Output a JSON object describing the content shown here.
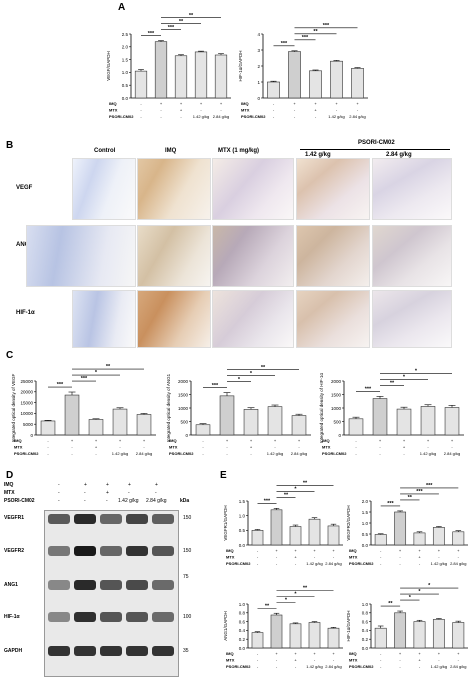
{
  "panel_labels": {
    "a": "A",
    "b": "B",
    "c": "C",
    "d": "D",
    "e": "E"
  },
  "treatment_rows": [
    "IMQ",
    "MTX",
    "PSORI-CM02"
  ],
  "treatment_signs": [
    [
      "-",
      "+",
      "+",
      "+",
      "+"
    ],
    [
      "-",
      "-",
      "+",
      "-",
      "-"
    ],
    [
      "-",
      "-",
      "-",
      "1.42 g/kg",
      "2.84 g/kg"
    ]
  ],
  "sig_labels": {
    "p001": "***",
    "p01": "**",
    "p05": "*"
  },
  "histology": {
    "columns": [
      "Control",
      "IMQ",
      "MTX (1 mg/kg)",
      "1.42 g/kg",
      "2.84 g/kg"
    ],
    "group_header": "PSORI-CM02",
    "rows": [
      "VEGF",
      "ANG1",
      "HIF-1α"
    ]
  },
  "western": {
    "kda_label": "kDa",
    "header_rows": {
      "IMQ": [
        "-",
        "+",
        "+",
        "+",
        "+"
      ],
      "MTX": [
        "-",
        "-",
        "+",
        "-",
        "-"
      ],
      "PSORI-CM02": [
        "-",
        "-",
        "-",
        "1.42 g/kg",
        "2.84 g/kg"
      ]
    },
    "proteins": [
      {
        "name": "VEGFR1",
        "kda": "150"
      },
      {
        "name": "VEGFR2",
        "kda": "150"
      },
      {
        "name": "ANG1",
        "kda": "75"
      },
      {
        "name": "HIF-1α",
        "kda": "100"
      },
      {
        "name": "GAPDH",
        "kda": "35"
      }
    ]
  },
  "chart_data": [
    {
      "panel": "A",
      "type": "bar",
      "ylabel": "VEGF/GAPDH",
      "ylim": [
        0,
        2.5
      ],
      "yticks": [
        "0.0",
        "0.5",
        "1.0",
        "1.5",
        "2.0",
        "2.5"
      ],
      "values": [
        1.05,
        2.2,
        1.65,
        1.8,
        1.68
      ],
      "errors": [
        0.06,
        0.04,
        0.04,
        0.03,
        0.05
      ],
      "brackets": [
        {
          "from": 0,
          "to": 1,
          "sig": "***"
        },
        {
          "from": 1,
          "to": 2,
          "sig": "***"
        },
        {
          "from": 1,
          "to": 3,
          "sig": "**"
        },
        {
          "from": 1,
          "to": 4,
          "sig": "**"
        }
      ]
    },
    {
      "panel": "A",
      "type": "bar",
      "ylabel": "HIF-1α/GAPDH",
      "ylim": [
        0,
        4
      ],
      "yticks": [
        "0",
        "1",
        "2",
        "3",
        "4"
      ],
      "values": [
        1.0,
        2.9,
        1.7,
        2.3,
        1.85
      ],
      "errors": [
        0.05,
        0.05,
        0.05,
        0.05,
        0.05
      ],
      "brackets": [
        {
          "from": 0,
          "to": 1,
          "sig": "***"
        },
        {
          "from": 1,
          "to": 2,
          "sig": "***"
        },
        {
          "from": 1,
          "to": 3,
          "sig": "**"
        },
        {
          "from": 1,
          "to": 4,
          "sig": "***"
        }
      ]
    },
    {
      "panel": "C",
      "type": "bar",
      "ylabel": "Integrated optical density of VEGF",
      "ylim": [
        0,
        25000
      ],
      "yticks": [
        "0",
        "5000",
        "10000",
        "15000",
        "20000",
        "25000"
      ],
      "values": [
        6500,
        18500,
        7200,
        12000,
        9500
      ],
      "errors": [
        300,
        1400,
        300,
        600,
        500
      ],
      "brackets": [
        {
          "from": 0,
          "to": 1,
          "sig": "***"
        },
        {
          "from": 1,
          "to": 2,
          "sig": "***"
        },
        {
          "from": 1,
          "to": 3,
          "sig": "*"
        },
        {
          "from": 1,
          "to": 4,
          "sig": "**"
        }
      ]
    },
    {
      "panel": "C",
      "type": "bar",
      "ylabel": "Integrated optical density of ANG1",
      "ylim": [
        0,
        2000
      ],
      "yticks": [
        "0",
        "500",
        "1000",
        "1500",
        "2000"
      ],
      "values": [
        380,
        1450,
        950,
        1050,
        720
      ],
      "errors": [
        40,
        120,
        60,
        60,
        50
      ],
      "brackets": [
        {
          "from": 0,
          "to": 1,
          "sig": "***"
        },
        {
          "from": 1,
          "to": 2,
          "sig": "*"
        },
        {
          "from": 1,
          "to": 3,
          "sig": "*"
        },
        {
          "from": 1,
          "to": 4,
          "sig": "**"
        }
      ]
    },
    {
      "panel": "C",
      "type": "bar",
      "ylabel": "Integrated optical density of HIF-1α",
      "ylim": [
        0,
        2000
      ],
      "yticks": [
        "0",
        "500",
        "1000",
        "1500",
        "2000"
      ],
      "values": [
        600,
        1350,
        960,
        1060,
        1020
      ],
      "errors": [
        60,
        80,
        70,
        60,
        80
      ],
      "brackets": [
        {
          "from": 0,
          "to": 1,
          "sig": "***"
        },
        {
          "from": 1,
          "to": 2,
          "sig": "**"
        },
        {
          "from": 1,
          "to": 3,
          "sig": "*"
        },
        {
          "from": 1,
          "to": 4,
          "sig": "*"
        }
      ]
    },
    {
      "panel": "E",
      "type": "bar",
      "ylabel": "VEGFR1/GAPDH",
      "ylim": [
        0,
        1.5
      ],
      "yticks": [
        "0.0",
        "0.5",
        "1.0",
        "1.5"
      ],
      "values": [
        0.5,
        1.2,
        0.63,
        0.88,
        0.65
      ],
      "errors": [
        0.03,
        0.05,
        0.05,
        0.05,
        0.06
      ],
      "brackets": [
        {
          "from": 0,
          "to": 1,
          "sig": "***"
        },
        {
          "from": 1,
          "to": 2,
          "sig": "**"
        },
        {
          "from": 1,
          "to": 3,
          "sig": "*"
        },
        {
          "from": 1,
          "to": 4,
          "sig": "**"
        }
      ]
    },
    {
      "panel": "E",
      "type": "bar",
      "ylabel": "VEGFR2/GAPDH",
      "ylim": [
        0,
        2.0
      ],
      "yticks": [
        "0.0",
        "0.5",
        "1.0",
        "1.5",
        "2.0"
      ],
      "values": [
        0.48,
        1.5,
        0.55,
        0.8,
        0.6
      ],
      "errors": [
        0.03,
        0.05,
        0.05,
        0.04,
        0.05
      ],
      "brackets": [
        {
          "from": 0,
          "to": 1,
          "sig": "***"
        },
        {
          "from": 1,
          "to": 2,
          "sig": "**"
        },
        {
          "from": 1,
          "to": 3,
          "sig": "***"
        },
        {
          "from": 1,
          "to": 4,
          "sig": "***"
        }
      ]
    },
    {
      "panel": "E",
      "type": "bar",
      "ylabel": "ANG1/GAPDH",
      "ylim": [
        0,
        1.0
      ],
      "yticks": [
        "0.0",
        "0.2",
        "0.4",
        "0.6",
        "0.8",
        "1.0"
      ],
      "values": [
        0.35,
        0.75,
        0.55,
        0.58,
        0.45
      ],
      "errors": [
        0.02,
        0.04,
        0.02,
        0.02,
        0.02
      ],
      "brackets": [
        {
          "from": 0,
          "to": 1,
          "sig": "**"
        },
        {
          "from": 1,
          "to": 2,
          "sig": "*"
        },
        {
          "from": 1,
          "to": 3,
          "sig": "*"
        },
        {
          "from": 1,
          "to": 4,
          "sig": "**"
        }
      ]
    },
    {
      "panel": "E",
      "type": "bar",
      "ylabel": "HIF-1α/GAPDH",
      "ylim": [
        0,
        1.0
      ],
      "yticks": [
        "0.0",
        "0.2",
        "0.4",
        "0.6",
        "0.8",
        "1.0"
      ],
      "values": [
        0.45,
        0.8,
        0.6,
        0.65,
        0.58
      ],
      "errors": [
        0.05,
        0.04,
        0.03,
        0.02,
        0.03
      ],
      "brackets": [
        {
          "from": 0,
          "to": 1,
          "sig": "**"
        },
        {
          "from": 1,
          "to": 2,
          "sig": "*"
        },
        {
          "from": 1,
          "to": 3,
          "sig": "*"
        },
        {
          "from": 1,
          "to": 4,
          "sig": "*"
        }
      ]
    }
  ]
}
